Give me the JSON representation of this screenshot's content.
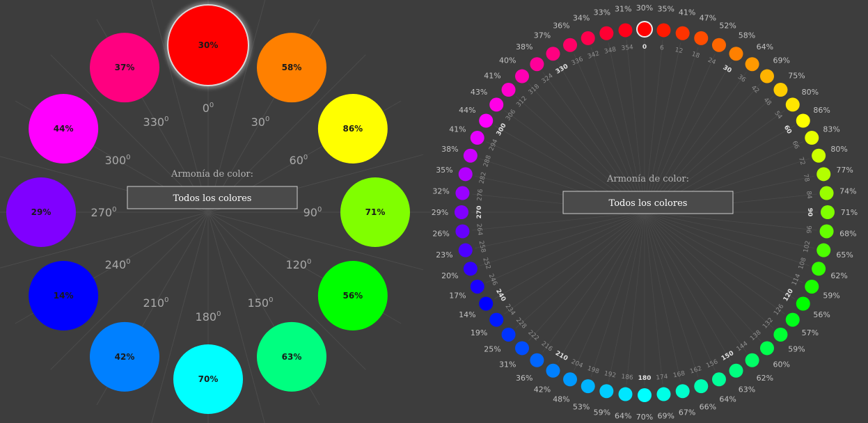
{
  "left_wheel": {
    "title": "Armonía de color:",
    "selector_label": "Todos los colores",
    "degree_unit": "0",
    "items": [
      {
        "hue": 0,
        "percent": "30%",
        "degree": "0",
        "color": "#ff0000"
      },
      {
        "hue": 30,
        "percent": "58%",
        "degree": "30",
        "color": "#ff8000"
      },
      {
        "hue": 60,
        "percent": "86%",
        "degree": "60",
        "color": "#ffff00"
      },
      {
        "hue": 90,
        "percent": "71%",
        "degree": "90",
        "color": "#80ff00"
      },
      {
        "hue": 120,
        "percent": "56%",
        "degree": "120",
        "color": "#00ff00"
      },
      {
        "hue": 150,
        "percent": "63%",
        "degree": "150",
        "color": "#00ff80"
      },
      {
        "hue": 180,
        "percent": "70%",
        "degree": "180",
        "color": "#00ffff"
      },
      {
        "hue": 210,
        "percent": "42%",
        "degree": "210",
        "color": "#0080ff"
      },
      {
        "hue": 240,
        "percent": "14%",
        "degree": "240",
        "color": "#0000ff"
      },
      {
        "hue": 270,
        "percent": "29%",
        "degree": "270",
        "color": "#8000ff"
      },
      {
        "hue": 300,
        "percent": "44%",
        "degree": "300",
        "color": "#ff00ff"
      },
      {
        "hue": 330,
        "percent": "37%",
        "degree": "330",
        "color": "#ff0080"
      }
    ]
  },
  "right_wheel": {
    "title": "Armonía de color:",
    "selector_label": "Todos los colores",
    "items": [
      {
        "hue": 0,
        "percent": "30%",
        "degree": "0",
        "color": "#ff0000"
      },
      {
        "hue": 6,
        "percent": "35%",
        "degree": "6",
        "color": "#ff1a00"
      },
      {
        "hue": 12,
        "percent": "41%",
        "degree": "12",
        "color": "#ff3300"
      },
      {
        "hue": 18,
        "percent": "47%",
        "degree": "18",
        "color": "#ff4d00"
      },
      {
        "hue": 24,
        "percent": "52%",
        "degree": "24",
        "color": "#ff6600"
      },
      {
        "hue": 30,
        "percent": "58%",
        "degree": "30",
        "color": "#ff8000"
      },
      {
        "hue": 36,
        "percent": "64%",
        "degree": "36",
        "color": "#ff9900"
      },
      {
        "hue": 42,
        "percent": "69%",
        "degree": "42",
        "color": "#ffb300"
      },
      {
        "hue": 48,
        "percent": "75%",
        "degree": "48",
        "color": "#ffcc00"
      },
      {
        "hue": 54,
        "percent": "80%",
        "degree": "54",
        "color": "#ffe600"
      },
      {
        "hue": 60,
        "percent": "86%",
        "degree": "60",
        "color": "#ffff00"
      },
      {
        "hue": 66,
        "percent": "83%",
        "degree": "66",
        "color": "#e6ff00"
      },
      {
        "hue": 72,
        "percent": "80%",
        "degree": "72",
        "color": "#ccff00"
      },
      {
        "hue": 78,
        "percent": "77%",
        "degree": "78",
        "color": "#b3ff00"
      },
      {
        "hue": 84,
        "percent": "74%",
        "degree": "84",
        "color": "#99ff00"
      },
      {
        "hue": 90,
        "percent": "71%",
        "degree": "90",
        "color": "#80ff00"
      },
      {
        "hue": 96,
        "percent": "68%",
        "degree": "96",
        "color": "#66ff00"
      },
      {
        "hue": 102,
        "percent": "65%",
        "degree": "102",
        "color": "#4dff00"
      },
      {
        "hue": 108,
        "percent": "62%",
        "degree": "108",
        "color": "#33ff00"
      },
      {
        "hue": 114,
        "percent": "59%",
        "degree": "114",
        "color": "#1aff00"
      },
      {
        "hue": 120,
        "percent": "56%",
        "degree": "120",
        "color": "#00ff00"
      },
      {
        "hue": 126,
        "percent": "57%",
        "degree": "126",
        "color": "#00ff1a"
      },
      {
        "hue": 132,
        "percent": "59%",
        "degree": "132",
        "color": "#00ff33"
      },
      {
        "hue": 138,
        "percent": "60%",
        "degree": "138",
        "color": "#00ff4d"
      },
      {
        "hue": 144,
        "percent": "62%",
        "degree": "144",
        "color": "#00ff66"
      },
      {
        "hue": 150,
        "percent": "63%",
        "degree": "150",
        "color": "#00ff80"
      },
      {
        "hue": 156,
        "percent": "64%",
        "degree": "156",
        "color": "#00ff99"
      },
      {
        "hue": 162,
        "percent": "66%",
        "degree": "162",
        "color": "#00ffb3"
      },
      {
        "hue": 168,
        "percent": "67%",
        "degree": "168",
        "color": "#00ffcc"
      },
      {
        "hue": 174,
        "percent": "69%",
        "degree": "174",
        "color": "#00ffe6"
      },
      {
        "hue": 180,
        "percent": "70%",
        "degree": "180",
        "color": "#00ffff"
      },
      {
        "hue": 186,
        "percent": "64%",
        "degree": "186",
        "color": "#00e6ff"
      },
      {
        "hue": 192,
        "percent": "59%",
        "degree": "192",
        "color": "#00ccff"
      },
      {
        "hue": 198,
        "percent": "53%",
        "degree": "198",
        "color": "#00b3ff"
      },
      {
        "hue": 204,
        "percent": "48%",
        "degree": "204",
        "color": "#0099ff"
      },
      {
        "hue": 210,
        "percent": "42%",
        "degree": "210",
        "color": "#0080ff"
      },
      {
        "hue": 216,
        "percent": "36%",
        "degree": "216",
        "color": "#0066ff"
      },
      {
        "hue": 222,
        "percent": "31%",
        "degree": "222",
        "color": "#004dff"
      },
      {
        "hue": 228,
        "percent": "25%",
        "degree": "228",
        "color": "#0033ff"
      },
      {
        "hue": 234,
        "percent": "19%",
        "degree": "234",
        "color": "#001aff"
      },
      {
        "hue": 240,
        "percent": "14%",
        "degree": "240",
        "color": "#0000ff"
      },
      {
        "hue": 246,
        "percent": "17%",
        "degree": "246",
        "color": "#1a00ff"
      },
      {
        "hue": 252,
        "percent": "20%",
        "degree": "252",
        "color": "#3300ff"
      },
      {
        "hue": 258,
        "percent": "23%",
        "degree": "258",
        "color": "#4d00ff"
      },
      {
        "hue": 264,
        "percent": "26%",
        "degree": "264",
        "color": "#6600ff"
      },
      {
        "hue": 270,
        "percent": "29%",
        "degree": "270",
        "color": "#8000ff"
      },
      {
        "hue": 276,
        "percent": "32%",
        "degree": "276",
        "color": "#9900ff"
      },
      {
        "hue": 282,
        "percent": "35%",
        "degree": "282",
        "color": "#b300ff"
      },
      {
        "hue": 288,
        "percent": "38%",
        "degree": "288",
        "color": "#cc00ff"
      },
      {
        "hue": 294,
        "percent": "41%",
        "degree": "294",
        "color": "#e600ff"
      },
      {
        "hue": 300,
        "percent": "44%",
        "degree": "300",
        "color": "#ff00ff"
      },
      {
        "hue": 306,
        "percent": "43%",
        "degree": "306",
        "color": "#ff00e6"
      },
      {
        "hue": 312,
        "percent": "41%",
        "degree": "312",
        "color": "#ff00cc"
      },
      {
        "hue": 318,
        "percent": "40%",
        "degree": "318",
        "color": "#ff00b3"
      },
      {
        "hue": 324,
        "percent": "38%",
        "degree": "324",
        "color": "#ff0099"
      },
      {
        "hue": 330,
        "percent": "37%",
        "degree": "330",
        "color": "#ff0080"
      },
      {
        "hue": 336,
        "percent": "36%",
        "degree": "336",
        "color": "#ff0066"
      },
      {
        "hue": 342,
        "percent": "34%",
        "degree": "342",
        "color": "#ff004d"
      },
      {
        "hue": 348,
        "percent": "33%",
        "degree": "348",
        "color": "#ff0033"
      },
      {
        "hue": 354,
        "percent": "31%",
        "degree": "354",
        "color": "#ff001a"
      }
    ]
  }
}
